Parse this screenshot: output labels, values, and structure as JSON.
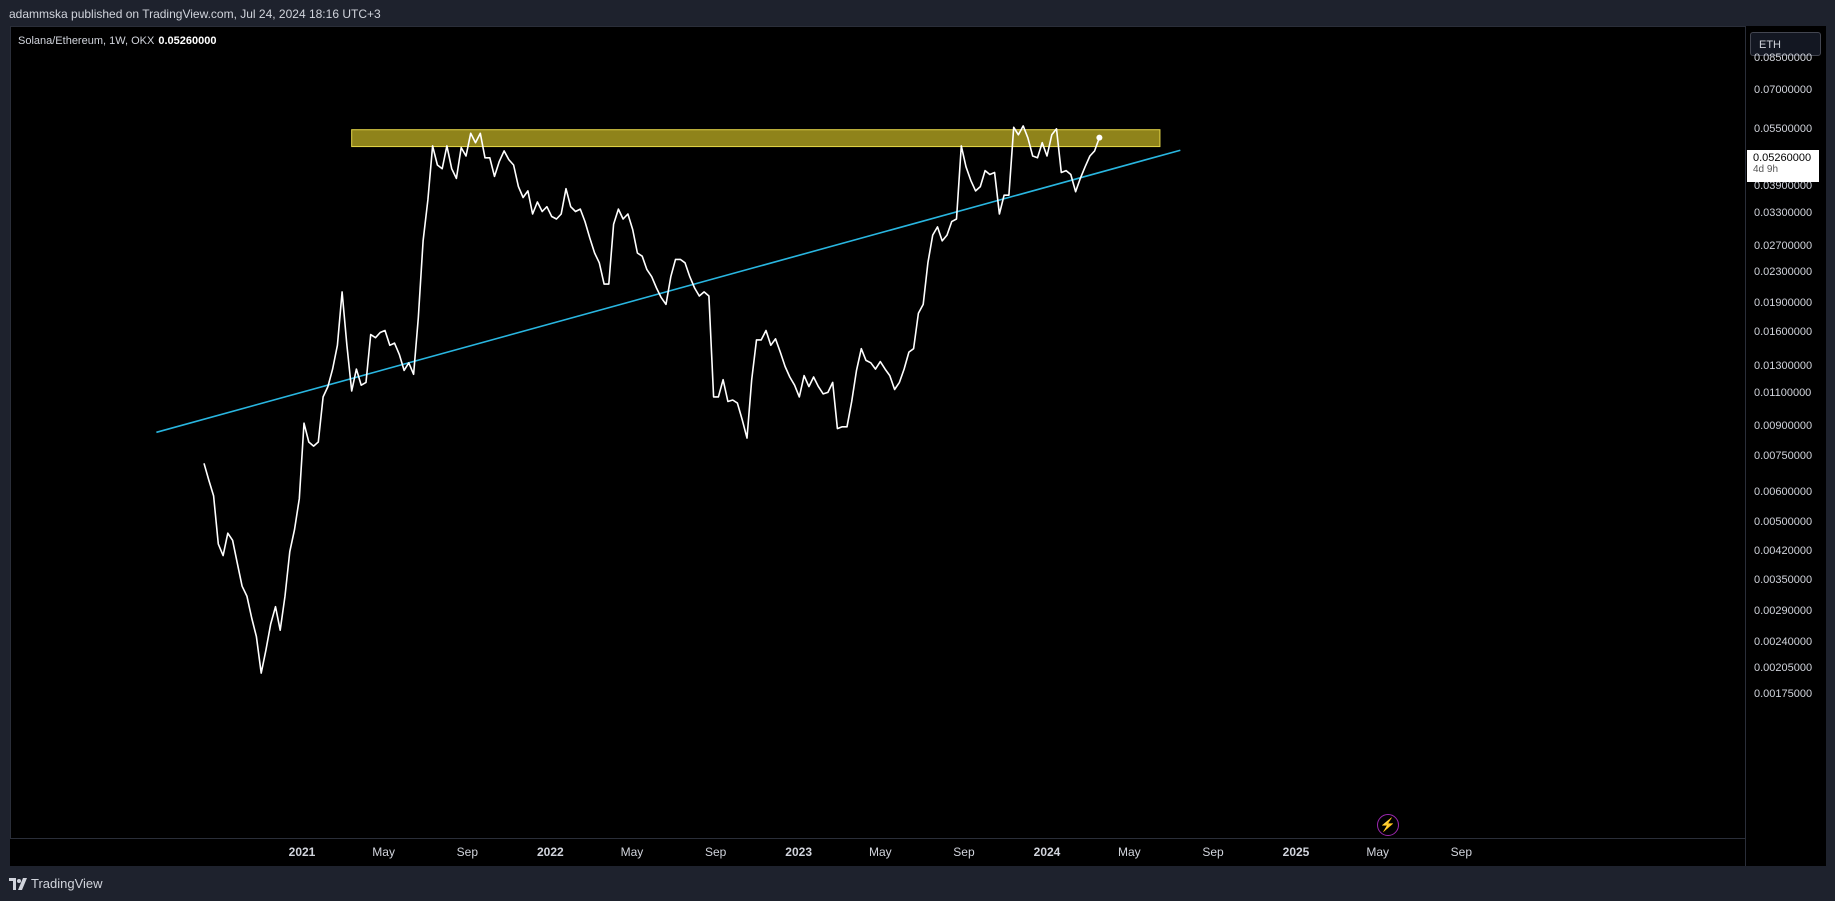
{
  "header": {
    "published": "adammska published on TradingView.com, Jul 24, 2024 18:16 UTC+3"
  },
  "legend": {
    "symbol": "Solana/Ethereum, 1W, OKX",
    "value": "0.05260000"
  },
  "currency_button": "ETH",
  "price_tag": {
    "value": "0.05260000",
    "countdown": "4d 9h"
  },
  "brand": "TradingView",
  "colors": {
    "line": "#ffffff",
    "trendline": "#29b6e0",
    "zone_fill": "#a89a1f",
    "zone_border": "#e6d84a",
    "background": "#000000"
  },
  "icons": {
    "brand_logo": "tradingview-logo-icon",
    "alert": "lightning-icon"
  },
  "chart_data": {
    "type": "line",
    "title": "Solana/Ethereum, 1W, OKX",
    "y_scale": "log",
    "ylim": [
      0.00165,
      0.1
    ],
    "y_ticks": [
      "0.08500000",
      "0.07000000",
      "0.05500000",
      "0.04700000",
      "0.03900000",
      "0.03300000",
      "0.02700000",
      "0.02300000",
      "0.01900000",
      "0.01600000",
      "0.01300000",
      "0.01100000",
      "0.00900000",
      "0.00750000",
      "0.00600000",
      "0.00500000",
      "0.00420000",
      "0.00350000",
      "0.00290000",
      "0.00240000",
      "0.00205000",
      "0.00175000"
    ],
    "x_ticks": [
      {
        "label": "2021",
        "date": "2021-01-01",
        "major": true
      },
      {
        "label": "May",
        "date": "2021-05-01",
        "major": false
      },
      {
        "label": "Sep",
        "date": "2021-09-01",
        "major": false
      },
      {
        "label": "2022",
        "date": "2022-01-01",
        "major": true
      },
      {
        "label": "May",
        "date": "2022-05-01",
        "major": false
      },
      {
        "label": "Sep",
        "date": "2022-09-01",
        "major": false
      },
      {
        "label": "2023",
        "date": "2023-01-01",
        "major": true
      },
      {
        "label": "May",
        "date": "2023-05-01",
        "major": false
      },
      {
        "label": "Sep",
        "date": "2023-09-01",
        "major": false
      },
      {
        "label": "2024",
        "date": "2024-01-01",
        "major": true
      },
      {
        "label": "May",
        "date": "2024-05-01",
        "major": false
      },
      {
        "label": "Sep",
        "date": "2024-09-01",
        "major": false
      },
      {
        "label": "2025",
        "date": "2025-01-01",
        "major": true
      },
      {
        "label": "May",
        "date": "2025-05-01",
        "major": false
      },
      {
        "label": "Sep",
        "date": "2025-09-01",
        "major": false
      }
    ],
    "series": [
      {
        "values": [
          [
            "2020-08-10",
            0.0072
          ],
          [
            "2020-08-17",
            0.0065
          ],
          [
            "2020-08-24",
            0.0059
          ],
          [
            "2020-08-31",
            0.0044
          ],
          [
            "2020-09-07",
            0.0041
          ],
          [
            "2020-09-14",
            0.0047
          ],
          [
            "2020-09-21",
            0.0045
          ],
          [
            "2020-09-28",
            0.0039
          ],
          [
            "2020-10-05",
            0.0034
          ],
          [
            "2020-10-12",
            0.0032
          ],
          [
            "2020-10-19",
            0.0028
          ],
          [
            "2020-10-26",
            0.0025
          ],
          [
            "2020-11-02",
            0.002
          ],
          [
            "2020-11-09",
            0.0023
          ],
          [
            "2020-11-16",
            0.0027
          ],
          [
            "2020-11-23",
            0.003
          ],
          [
            "2020-11-30",
            0.0026
          ],
          [
            "2020-12-07",
            0.0032
          ],
          [
            "2020-12-14",
            0.0042
          ],
          [
            "2020-12-21",
            0.0048
          ],
          [
            "2020-12-28",
            0.0058
          ],
          [
            "2021-01-04",
            0.0092
          ],
          [
            "2021-01-11",
            0.0082
          ],
          [
            "2021-01-18",
            0.008
          ],
          [
            "2021-01-25",
            0.0082
          ],
          [
            "2021-02-01",
            0.0108
          ],
          [
            "2021-02-08",
            0.0115
          ],
          [
            "2021-02-15",
            0.0128
          ],
          [
            "2021-02-22",
            0.0148
          ],
          [
            "2021-03-01",
            0.0205
          ],
          [
            "2021-03-08",
            0.0148
          ],
          [
            "2021-03-15",
            0.0112
          ],
          [
            "2021-03-22",
            0.0128
          ],
          [
            "2021-03-29",
            0.0116
          ],
          [
            "2021-04-05",
            0.0118
          ],
          [
            "2021-04-12",
            0.0158
          ],
          [
            "2021-04-19",
            0.0155
          ],
          [
            "2021-04-26",
            0.016
          ],
          [
            "2021-05-03",
            0.0162
          ],
          [
            "2021-05-10",
            0.0148
          ],
          [
            "2021-05-17",
            0.015
          ],
          [
            "2021-05-24",
            0.014
          ],
          [
            "2021-05-31",
            0.0127
          ],
          [
            "2021-06-07",
            0.0133
          ],
          [
            "2021-06-14",
            0.0124
          ],
          [
            "2021-06-21",
            0.0175
          ],
          [
            "2021-06-28",
            0.028
          ],
          [
            "2021-07-05",
            0.036
          ],
          [
            "2021-07-12",
            0.05
          ],
          [
            "2021-07-19",
            0.0445
          ],
          [
            "2021-07-26",
            0.0435
          ],
          [
            "2021-08-02",
            0.05
          ],
          [
            "2021-08-09",
            0.0435
          ],
          [
            "2021-08-16",
            0.041
          ],
          [
            "2021-08-23",
            0.0495
          ],
          [
            "2021-08-30",
            0.047
          ],
          [
            "2021-09-06",
            0.054
          ],
          [
            "2021-09-13",
            0.051
          ],
          [
            "2021-09-20",
            0.054
          ],
          [
            "2021-09-27",
            0.0465
          ],
          [
            "2021-10-04",
            0.0465
          ],
          [
            "2021-10-11",
            0.0415
          ],
          [
            "2021-10-18",
            0.0455
          ],
          [
            "2021-10-25",
            0.0485
          ],
          [
            "2021-11-01",
            0.046
          ],
          [
            "2021-11-08",
            0.0445
          ],
          [
            "2021-11-15",
            0.039
          ],
          [
            "2021-11-22",
            0.0365
          ],
          [
            "2021-11-29",
            0.038
          ],
          [
            "2021-12-06",
            0.033
          ],
          [
            "2021-12-13",
            0.0355
          ],
          [
            "2021-12-20",
            0.0335
          ],
          [
            "2021-12-27",
            0.0345
          ],
          [
            "2022-01-03",
            0.0325
          ],
          [
            "2022-01-10",
            0.032
          ],
          [
            "2022-01-17",
            0.033
          ],
          [
            "2022-01-24",
            0.0385
          ],
          [
            "2022-01-31",
            0.0345
          ],
          [
            "2022-02-07",
            0.0335
          ],
          [
            "2022-02-14",
            0.034
          ],
          [
            "2022-02-21",
            0.0315
          ],
          [
            "2022-02-28",
            0.0285
          ],
          [
            "2022-03-07",
            0.026
          ],
          [
            "2022-03-14",
            0.0245
          ],
          [
            "2022-03-21",
            0.0215
          ],
          [
            "2022-03-28",
            0.0215
          ],
          [
            "2022-04-04",
            0.031
          ],
          [
            "2022-04-11",
            0.034
          ],
          [
            "2022-04-18",
            0.032
          ],
          [
            "2022-04-25",
            0.033
          ],
          [
            "2022-05-02",
            0.03
          ],
          [
            "2022-05-09",
            0.026
          ],
          [
            "2022-05-16",
            0.0255
          ],
          [
            "2022-05-23",
            0.0235
          ],
          [
            "2022-05-30",
            0.0225
          ],
          [
            "2022-06-06",
            0.021
          ],
          [
            "2022-06-13",
            0.0198
          ],
          [
            "2022-06-20",
            0.019
          ],
          [
            "2022-06-27",
            0.0225
          ],
          [
            "2022-07-04",
            0.025
          ],
          [
            "2022-07-11",
            0.025
          ],
          [
            "2022-07-18",
            0.0245
          ],
          [
            "2022-07-25",
            0.0225
          ],
          [
            "2022-08-01",
            0.021
          ],
          [
            "2022-08-08",
            0.02
          ],
          [
            "2022-08-15",
            0.0205
          ],
          [
            "2022-08-22",
            0.02
          ],
          [
            "2022-08-29",
            0.0108
          ],
          [
            "2022-09-05",
            0.0108
          ],
          [
            "2022-09-12",
            0.012
          ],
          [
            "2022-09-19",
            0.0105
          ],
          [
            "2022-09-26",
            0.0106
          ],
          [
            "2022-10-03",
            0.0104
          ],
          [
            "2022-10-10",
            0.0094
          ],
          [
            "2022-10-17",
            0.0084
          ],
          [
            "2022-10-24",
            0.012
          ],
          [
            "2022-10-31",
            0.0153
          ],
          [
            "2022-11-07",
            0.0153
          ],
          [
            "2022-11-14",
            0.0162
          ],
          [
            "2022-11-21",
            0.0148
          ],
          [
            "2022-11-28",
            0.0154
          ],
          [
            "2022-12-05",
            0.0142
          ],
          [
            "2022-12-12",
            0.013
          ],
          [
            "2022-12-19",
            0.0122
          ],
          [
            "2022-12-26",
            0.0116
          ],
          [
            "2023-01-02",
            0.0108
          ],
          [
            "2023-01-09",
            0.0123
          ],
          [
            "2023-01-16",
            0.0115
          ],
          [
            "2023-01-23",
            0.0122
          ],
          [
            "2023-01-30",
            0.0115
          ],
          [
            "2023-02-06",
            0.011
          ],
          [
            "2023-02-13",
            0.0111
          ],
          [
            "2023-02-20",
            0.0118
          ],
          [
            "2023-02-27",
            0.0089
          ],
          [
            "2023-03-06",
            0.009
          ],
          [
            "2023-03-13",
            0.009
          ],
          [
            "2023-03-20",
            0.0105
          ],
          [
            "2023-03-27",
            0.0127
          ],
          [
            "2023-04-03",
            0.0145
          ],
          [
            "2023-04-10",
            0.0135
          ],
          [
            "2023-04-17",
            0.0133
          ],
          [
            "2023-04-24",
            0.0128
          ],
          [
            "2023-05-01",
            0.0134
          ],
          [
            "2023-05-08",
            0.0128
          ],
          [
            "2023-05-15",
            0.0123
          ],
          [
            "2023-05-22",
            0.0113
          ],
          [
            "2023-05-29",
            0.0118
          ],
          [
            "2023-06-05",
            0.0128
          ],
          [
            "2023-06-12",
            0.0142
          ],
          [
            "2023-06-19",
            0.0145
          ],
          [
            "2023-06-26",
            0.018
          ],
          [
            "2023-07-03",
            0.019
          ],
          [
            "2023-07-10",
            0.0245
          ],
          [
            "2023-07-17",
            0.029
          ],
          [
            "2023-07-24",
            0.0305
          ],
          [
            "2023-07-31",
            0.028
          ],
          [
            "2023-08-07",
            0.029
          ],
          [
            "2023-08-14",
            0.0315
          ],
          [
            "2023-08-21",
            0.032
          ],
          [
            "2023-08-28",
            0.05
          ],
          [
            "2023-09-04",
            0.044
          ],
          [
            "2023-09-11",
            0.0405
          ],
          [
            "2023-09-18",
            0.038
          ],
          [
            "2023-09-25",
            0.039
          ],
          [
            "2023-10-02",
            0.043
          ],
          [
            "2023-10-09",
            0.042
          ],
          [
            "2023-10-16",
            0.0425
          ],
          [
            "2023-10-23",
            0.033
          ],
          [
            "2023-10-30",
            0.037
          ],
          [
            "2023-11-06",
            0.037
          ],
          [
            "2023-11-13",
            0.056
          ],
          [
            "2023-11-20",
            0.0535
          ],
          [
            "2023-11-27",
            0.0565
          ],
          [
            "2023-12-04",
            0.0525
          ],
          [
            "2023-12-11",
            0.047
          ],
          [
            "2023-12-18",
            0.0465
          ],
          [
            "2023-12-25",
            0.051
          ],
          [
            "2024-01-01",
            0.047
          ],
          [
            "2024-01-08",
            0.0535
          ],
          [
            "2024-01-15",
            0.0555
          ],
          [
            "2024-01-22",
            0.0425
          ],
          [
            "2024-01-29",
            0.043
          ],
          [
            "2024-02-05",
            0.042
          ],
          [
            "2024-02-12",
            0.0378
          ],
          [
            "2024-02-19",
            0.041
          ],
          [
            "2024-02-26",
            0.044
          ],
          [
            "2024-03-04",
            0.047
          ],
          [
            "2024-03-11",
            0.0485
          ],
          [
            "2024-03-18",
            0.0526
          ]
        ]
      }
    ],
    "annotations": {
      "resistance_zone": {
        "start": "2021-03-15",
        "end": "2024-06-15",
        "low": 0.0498,
        "high": 0.0552
      },
      "trendline": {
        "start": [
          "2020-06-01",
          0.0087
        ],
        "end": [
          "2024-07-15",
          0.0487
        ]
      },
      "last_point": [
        "2024-03-18",
        0.0526
      ]
    }
  }
}
